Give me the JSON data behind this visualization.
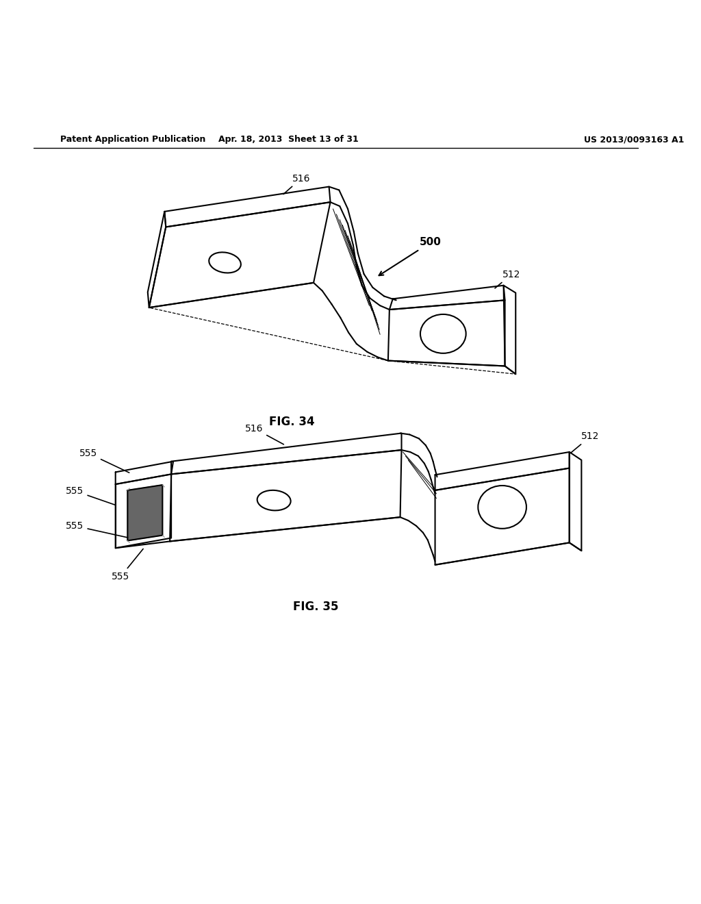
{
  "bg_color": "#ffffff",
  "line_color": "#000000",
  "header_left": "Patent Application Publication",
  "header_center": "Apr. 18, 2013  Sheet 13 of 31",
  "header_right": "US 2013/0093163 A1",
  "fig34_label": "FIG. 34",
  "fig35_label": "FIG. 35"
}
